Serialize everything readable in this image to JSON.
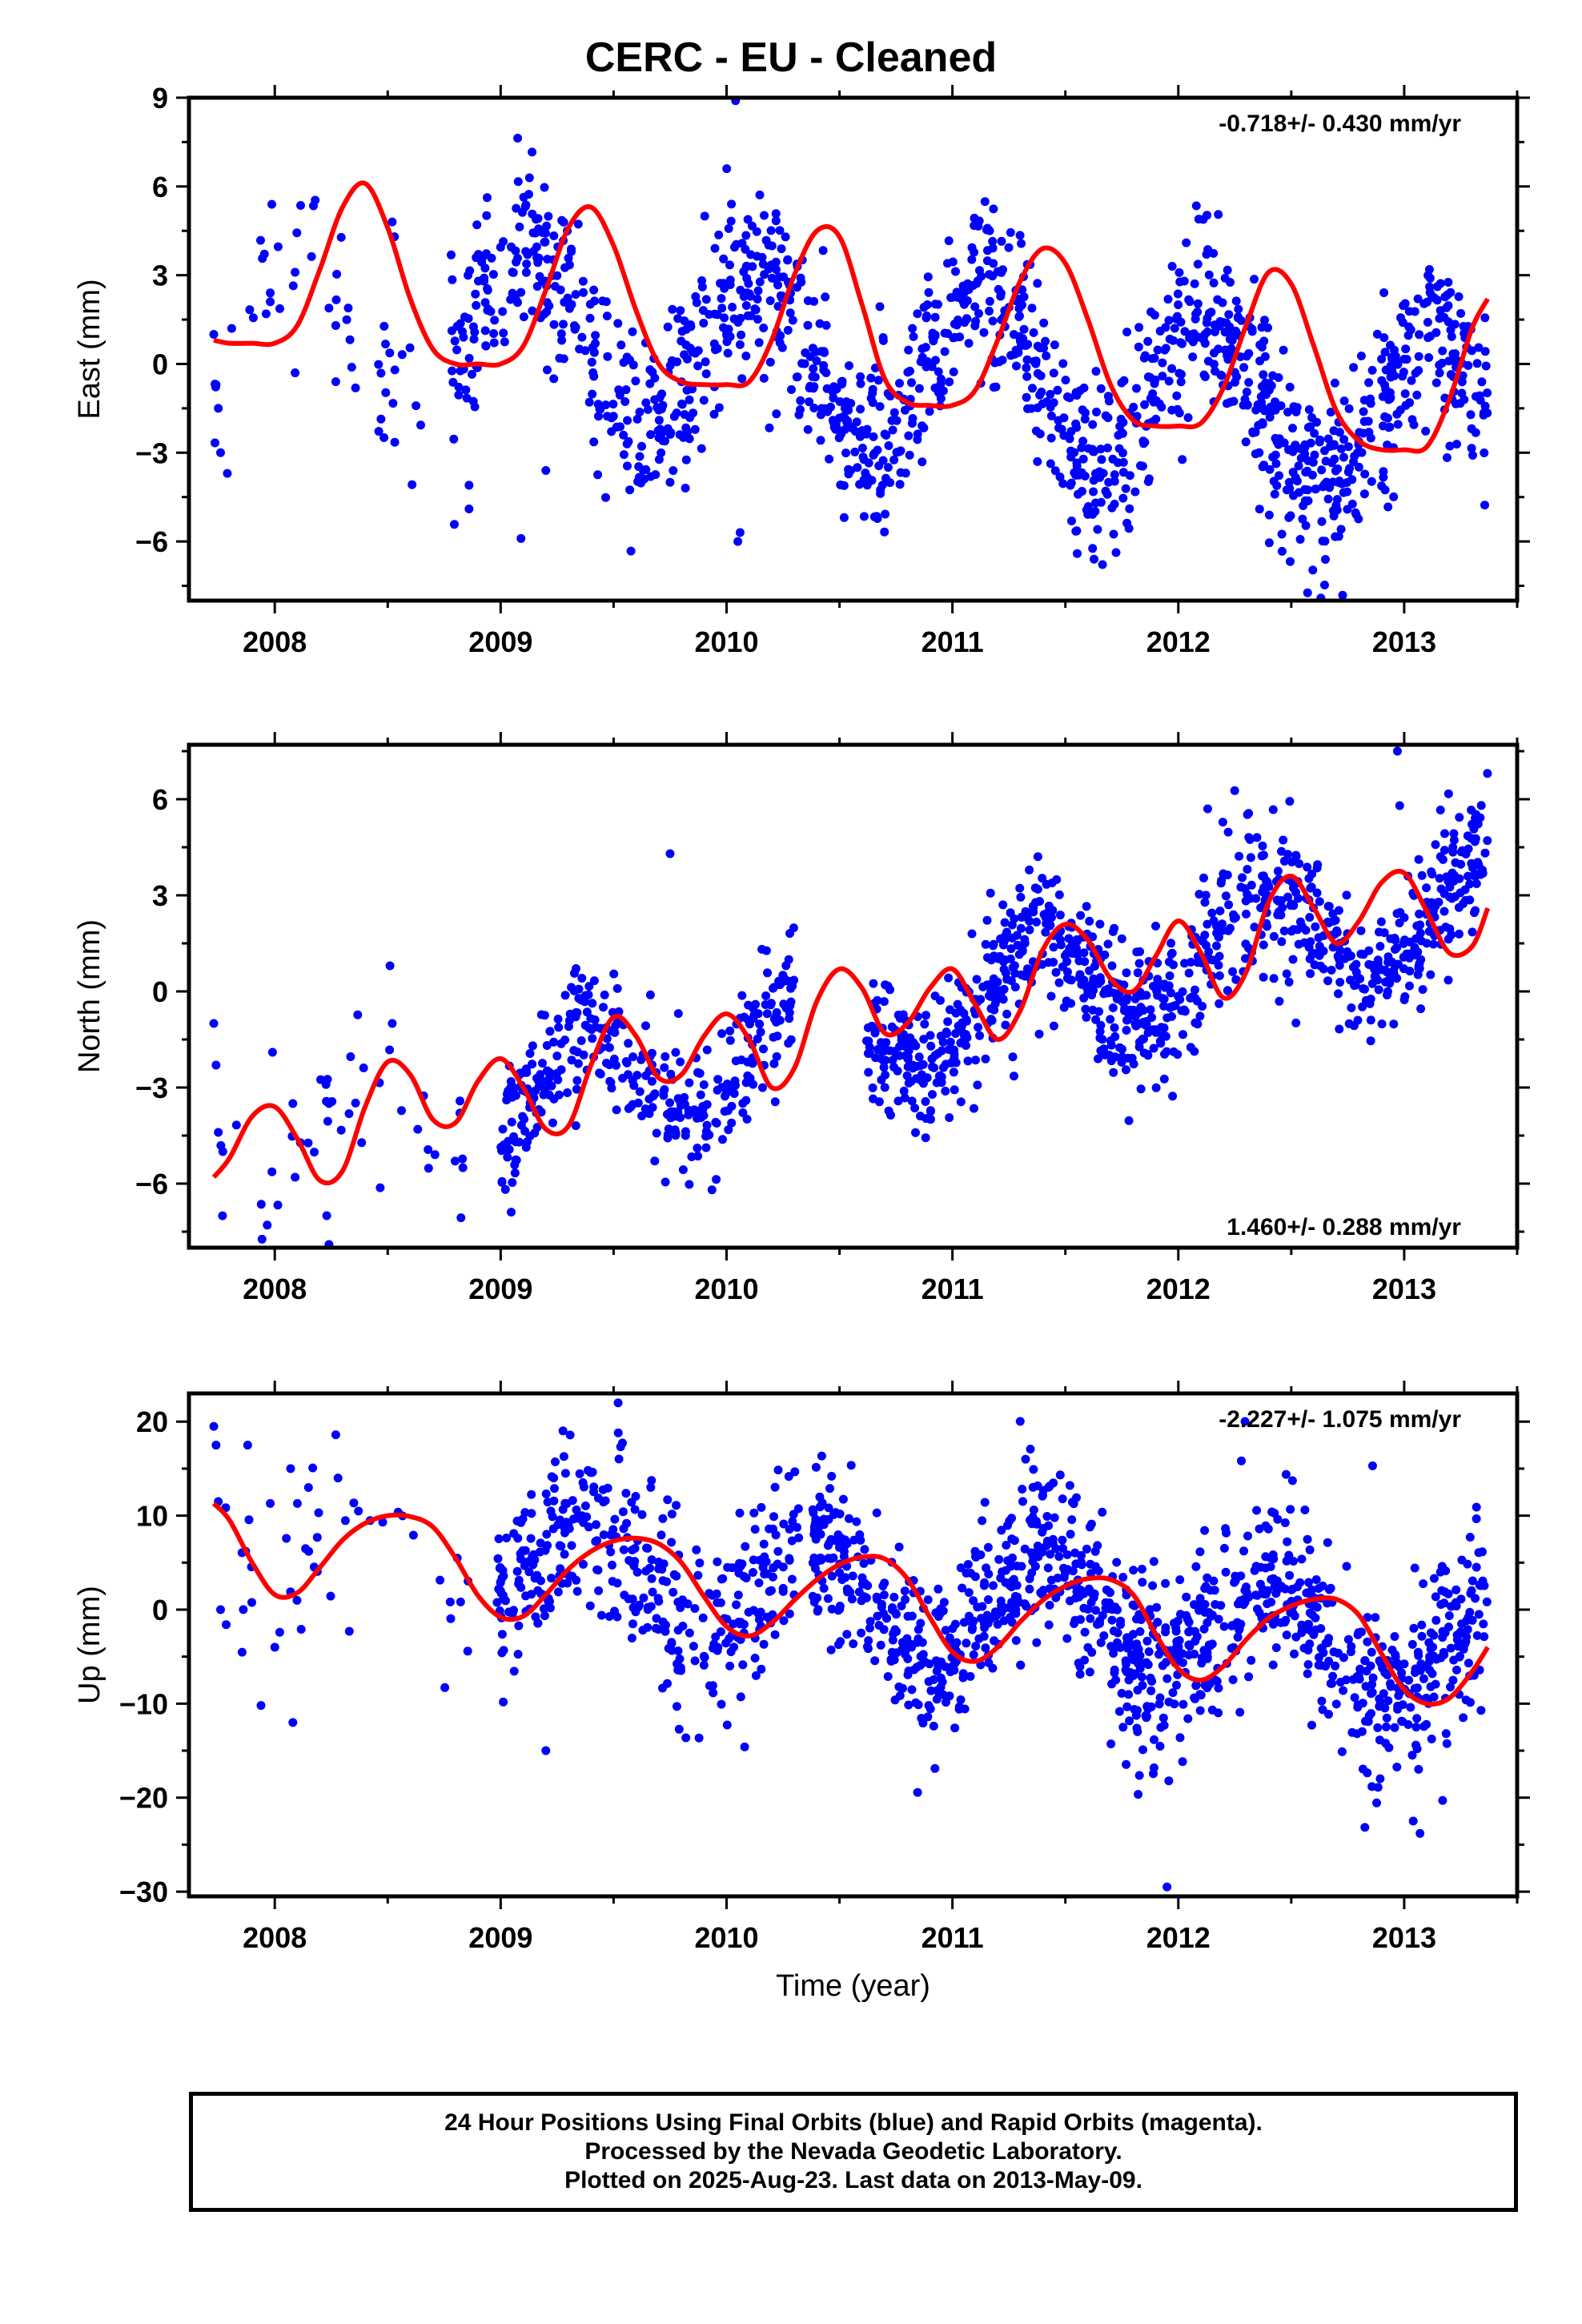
{
  "title": "CERC  - EU - Cleaned",
  "colors": {
    "points": "#0000ff",
    "fit": "#ff0000",
    "axis": "#000000"
  },
  "chart_data": [
    {
      "type": "scatter",
      "name": "east",
      "ylabel": "East (mm)",
      "xlabel": "",
      "xlim": [
        2007.62,
        2013.5
      ],
      "ylim": [
        -8,
        9
      ],
      "xticks": [
        2008,
        2009,
        2010,
        2011,
        2012,
        2013
      ],
      "yticks": [
        -6,
        -3,
        0,
        3,
        6,
        9
      ],
      "rate": "-0.718+/- 0.430 mm/yr",
      "rate_position": "top-right",
      "fit": {
        "x": [
          2007.73,
          2007.8,
          2007.9,
          2008.0,
          2008.1,
          2008.2,
          2008.3,
          2008.4,
          2008.5,
          2008.6,
          2008.7,
          2008.8,
          2008.9,
          2009.0,
          2009.1,
          2009.2,
          2009.3,
          2009.4,
          2009.5,
          2009.6,
          2009.7,
          2009.8,
          2009.9,
          2010.0,
          2010.1,
          2010.2,
          2010.3,
          2010.4,
          2010.5,
          2010.6,
          2010.7,
          2010.8,
          2010.9,
          2011.0,
          2011.1,
          2011.2,
          2011.3,
          2011.4,
          2011.5,
          2011.6,
          2011.7,
          2011.8,
          2011.9,
          2012.0,
          2012.1,
          2012.2,
          2012.3,
          2012.4,
          2012.5,
          2012.6,
          2012.7,
          2012.8,
          2012.9,
          2013.0,
          2013.1,
          2013.2,
          2013.3,
          2013.37
        ],
        "y": [
          0.8,
          0.7,
          0.7,
          0.7,
          1.3,
          3.2,
          5.3,
          6.1,
          4.6,
          2.2,
          0.5,
          0.0,
          0.0,
          0.0,
          0.6,
          2.5,
          4.6,
          5.3,
          4.0,
          1.8,
          0.0,
          -0.6,
          -0.7,
          -0.7,
          -0.6,
          0.8,
          3.0,
          4.5,
          4.3,
          2.0,
          -0.5,
          -1.3,
          -1.4,
          -1.4,
          -0.9,
          0.8,
          2.8,
          3.9,
          3.4,
          1.5,
          -0.7,
          -1.9,
          -2.1,
          -2.1,
          -2.0,
          -0.8,
          1.3,
          3.1,
          2.7,
          0.6,
          -1.6,
          -2.6,
          -2.9,
          -2.9,
          -2.8,
          -1.2,
          1.2,
          2.2
        ]
      },
      "seasonal": {
        "offset": 0.0,
        "trend": -0.718,
        "t0": 2010.5,
        "amp": 2.8,
        "phase": 2011.13,
        "noise": 1.5,
        "ranges": [
          [
            2007.73,
            2008.65,
            45
          ],
          [
            2008.78,
            2010.1,
            360
          ],
          [
            2010.08,
            2013.37,
            1080
          ]
        ]
      },
      "points": {
        "x": [
          2007.73,
          2007.74,
          2007.75,
          2007.76,
          2007.79,
          2007.98,
          2007.98,
          2008.09,
          2008.09,
          2008.27,
          2008.27,
          2008.52,
          2008.53,
          2008.86,
          2008.86,
          2010.04,
          2009.09,
          2010.05,
          2010.06,
          2009.2,
          2009.75
        ],
        "y": [
          1.0,
          -0.7,
          -1.5,
          -3.0,
          -3.7,
          2.4,
          2.1,
          3.1,
          -0.3,
          1.3,
          -0.6,
          4.8,
          4.3,
          -4.1,
          -4.9,
          8.9,
          -5.9,
          -6.0,
          -5.7,
          -3.6,
          -4.0
        ]
      }
    },
    {
      "type": "scatter",
      "name": "north",
      "ylabel": "North (mm)",
      "xlabel": "",
      "xlim": [
        2007.62,
        2013.5
      ],
      "ylim": [
        -8,
        7.7
      ],
      "xticks": [
        2008,
        2009,
        2010,
        2011,
        2012,
        2013
      ],
      "yticks": [
        -6,
        -3,
        0,
        3,
        6
      ],
      "rate": "1.460+/- 0.288 mm/yr",
      "rate_position": "bottom-right",
      "fit": {
        "x": [
          2007.73,
          2007.8,
          2007.9,
          2008.0,
          2008.1,
          2008.2,
          2008.3,
          2008.4,
          2008.5,
          2008.6,
          2008.7,
          2008.8,
          2008.9,
          2009.0,
          2009.1,
          2009.2,
          2009.3,
          2009.4,
          2009.5,
          2009.6,
          2009.7,
          2009.8,
          2009.9,
          2010.0,
          2010.1,
          2010.2,
          2010.3,
          2010.4,
          2010.5,
          2010.6,
          2010.7,
          2010.8,
          2010.9,
          2011.0,
          2011.1,
          2011.2,
          2011.3,
          2011.4,
          2011.5,
          2011.6,
          2011.7,
          2011.8,
          2011.9,
          2012.0,
          2012.1,
          2012.2,
          2012.3,
          2012.4,
          2012.5,
          2012.6,
          2012.7,
          2012.8,
          2012.9,
          2013.0,
          2013.1,
          2013.2,
          2013.3,
          2013.37
        ],
        "y": [
          -5.8,
          -5.2,
          -3.9,
          -3.6,
          -4.6,
          -5.9,
          -5.6,
          -3.6,
          -2.2,
          -2.6,
          -4.0,
          -4.1,
          -2.8,
          -2.1,
          -3.0,
          -4.3,
          -4.2,
          -2.3,
          -0.8,
          -1.4,
          -2.7,
          -2.6,
          -1.4,
          -0.7,
          -1.5,
          -3.0,
          -2.4,
          -0.3,
          0.7,
          0.1,
          -1.3,
          -1.0,
          0.1,
          0.7,
          -0.4,
          -1.5,
          -0.6,
          1.3,
          2.1,
          1.6,
          0.4,
          0.0,
          1.1,
          2.2,
          1.2,
          -0.2,
          0.6,
          2.8,
          3.6,
          2.6,
          1.5,
          2.2,
          3.4,
          3.7,
          2.5,
          1.2,
          1.4,
          2.6
        ]
      },
      "seasonal": {
        "offset": -1.3,
        "trend": 1.46,
        "t0": 2010.5,
        "amp": 1.6,
        "phase": 2011.38,
        "noise": 1.1,
        "ranges": [
          [
            2007.73,
            2008.88,
            40
          ],
          [
            2009.0,
            2010.3,
            360
          ],
          [
            2010.62,
            2013.37,
            960
          ]
        ]
      },
      "points": {
        "x": [
          2007.73,
          2007.74,
          2007.75,
          2007.77,
          2007.99,
          2008.08,
          2008.09,
          2008.23,
          2008.24,
          2008.24,
          2008.51,
          2008.52,
          2009.75,
          2012.13,
          2012.97,
          2012.98
        ],
        "y": [
          -1.0,
          -2.3,
          -4.4,
          -5.0,
          -1.9,
          -3.5,
          -5.8,
          -7.0,
          -7.9,
          -3.5,
          0.8,
          -1.0,
          4.3,
          5.7,
          7.5,
          5.8
        ]
      }
    },
    {
      "type": "scatter",
      "name": "up",
      "ylabel": "Up (mm)",
      "xlabel": "Time (year)",
      "xlim": [
        2007.62,
        2013.5
      ],
      "ylim": [
        -30.5,
        23
      ],
      "xticks": [
        2008,
        2009,
        2010,
        2011,
        2012,
        2013
      ],
      "yticks": [
        -30,
        -20,
        -10,
        0,
        10,
        20
      ],
      "rate": "-2.227+/- 1.075 mm/yr",
      "rate_position": "top-right",
      "fit": {
        "x": [
          2007.73,
          2007.8,
          2007.9,
          2008.0,
          2008.1,
          2008.2,
          2008.3,
          2008.4,
          2008.5,
          2008.6,
          2008.7,
          2008.8,
          2008.9,
          2009.0,
          2009.1,
          2009.2,
          2009.3,
          2009.4,
          2009.5,
          2009.6,
          2009.7,
          2009.8,
          2009.9,
          2010.0,
          2010.1,
          2010.2,
          2010.3,
          2010.4,
          2010.5,
          2010.6,
          2010.7,
          2010.8,
          2010.9,
          2011.0,
          2011.1,
          2011.2,
          2011.3,
          2011.4,
          2011.5,
          2011.6,
          2011.7,
          2011.8,
          2011.9,
          2012.0,
          2012.1,
          2012.2,
          2012.3,
          2012.4,
          2012.5,
          2012.6,
          2012.7,
          2012.8,
          2012.9,
          2013.0,
          2013.1,
          2013.2,
          2013.3,
          2013.37
        ],
        "y": [
          11.3,
          9.5,
          5.0,
          1.6,
          1.8,
          4.5,
          7.4,
          9.2,
          10.0,
          9.9,
          8.8,
          5.5,
          1.5,
          -0.8,
          -0.7,
          1.6,
          4.3,
          6.2,
          7.3,
          7.6,
          7.0,
          5.0,
          1.4,
          -1.8,
          -2.8,
          -1.4,
          1.0,
          3.2,
          4.8,
          5.6,
          5.4,
          3.3,
          -0.8,
          -4.5,
          -5.5,
          -4.0,
          -1.3,
          1.0,
          2.5,
          3.3,
          3.2,
          1.6,
          -2.6,
          -6.3,
          -7.5,
          -6.0,
          -3.2,
          -0.9,
          0.4,
          1.1,
          1.1,
          -0.6,
          -4.7,
          -8.5,
          -10.0,
          -9.4,
          -6.6,
          -4.0
        ]
      },
      "seasonal": {
        "offset": 1.5,
        "trend": -2.227,
        "t0": 2010.5,
        "amp": 5.5,
        "phase": 2011.4,
        "noise": 4.8,
        "ranges": [
          [
            2007.73,
            2008.88,
            40
          ],
          [
            2008.98,
            2010.32,
            380
          ],
          [
            2010.38,
            2013.37,
            1080
          ]
        ]
      },
      "points": {
        "x": [
          2007.73,
          2007.74,
          2007.75,
          2007.76,
          2007.88,
          2007.98,
          2008.0,
          2008.07,
          2008.08,
          2008.1,
          2008.27,
          2008.28,
          2008.33,
          2009.2,
          2009.52,
          2009.78,
          2010.08,
          2012.86,
          2011.95,
          2013.07,
          2013.17
        ],
        "y": [
          19.5,
          17.5,
          11.5,
          0.0,
          17.5,
          11.3,
          -4.0,
          15.0,
          -12.0,
          11.3,
          18.6,
          14.0,
          -2.3,
          -15.0,
          22.0,
          -10.3,
          -14.6,
          15.3,
          -29.5,
          -23.8,
          -20.3
        ]
      }
    }
  ],
  "footer": {
    "line1": "24 Hour Positions Using Final Orbits (blue) and Rapid Orbits (magenta).",
    "line2": "Processed by the Nevada Geodetic Laboratory.",
    "line3": "Plotted on 2025-Aug-23. Last data on 2013-May-09."
  }
}
